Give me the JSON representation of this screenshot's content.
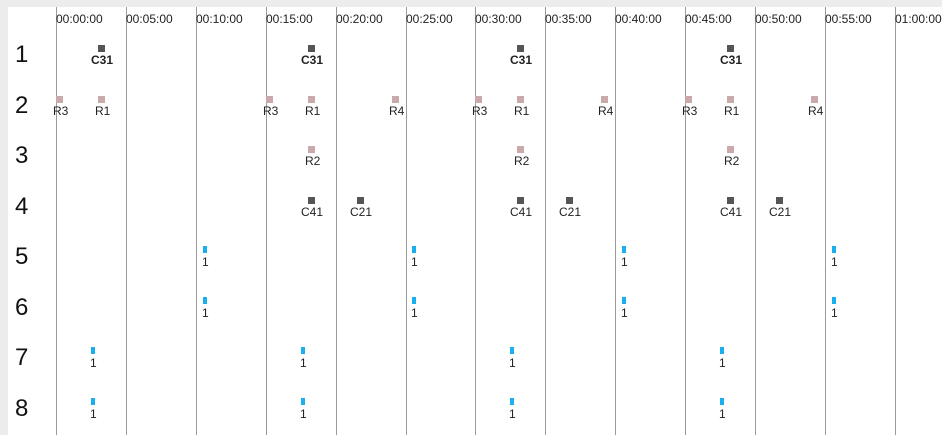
{
  "colors": {
    "background": "#ececec",
    "panel": "#ffffff",
    "gridline": "#9a9a9a",
    "dark": "#555555",
    "rose": "#c9a9a9",
    "blue": "#1ab0ef"
  },
  "timeline": {
    "ticks": [
      "00:00:00",
      "00:05:00",
      "00:10:00",
      "00:15:00",
      "00:20:00",
      "00:25:00",
      "00:30:00",
      "00:35:00",
      "00:40:00",
      "00:45:00",
      "00:50:00",
      "00:55:00",
      "01:00:00"
    ],
    "rows": [
      "1",
      "2",
      "3",
      "4",
      "5",
      "6",
      "7",
      "8"
    ]
  },
  "chart_data": {
    "type": "scatter",
    "title": "",
    "x_unit": "minutes",
    "xlim": [
      0,
      60
    ],
    "series": [
      {
        "color": "#555555",
        "bold": true,
        "points": [
          {
            "row": 1,
            "t": 3,
            "label": "C31"
          },
          {
            "row": 1,
            "t": 18,
            "label": "C31"
          },
          {
            "row": 1,
            "t": 33,
            "label": "C31"
          },
          {
            "row": 1,
            "t": 48,
            "label": "C31"
          }
        ]
      },
      {
        "color": "#c9a9a9",
        "points": [
          {
            "row": 2,
            "t": 0,
            "label": "R3"
          },
          {
            "row": 2,
            "t": 3,
            "label": "R1"
          },
          {
            "row": 2,
            "t": 15,
            "label": "R3"
          },
          {
            "row": 2,
            "t": 18,
            "label": "R1"
          },
          {
            "row": 2,
            "t": 24,
            "label": "R4"
          },
          {
            "row": 2,
            "t": 30,
            "label": "R3"
          },
          {
            "row": 2,
            "t": 33,
            "label": "R1"
          },
          {
            "row": 2,
            "t": 39,
            "label": "R4"
          },
          {
            "row": 2,
            "t": 45,
            "label": "R3"
          },
          {
            "row": 2,
            "t": 48,
            "label": "R1"
          },
          {
            "row": 2,
            "t": 54,
            "label": "R4"
          },
          {
            "row": 3,
            "t": 18,
            "label": "R2"
          },
          {
            "row": 3,
            "t": 33,
            "label": "R2"
          },
          {
            "row": 3,
            "t": 48,
            "label": "R2"
          }
        ]
      },
      {
        "color": "#555555",
        "points": [
          {
            "row": 4,
            "t": 18,
            "label": "C41"
          },
          {
            "row": 4,
            "t": 21.5,
            "label": "C21"
          },
          {
            "row": 4,
            "t": 33,
            "label": "C41"
          },
          {
            "row": 4,
            "t": 36.5,
            "label": "C21"
          },
          {
            "row": 4,
            "t": 48,
            "label": "C41"
          },
          {
            "row": 4,
            "t": 51.5,
            "label": "C21"
          }
        ]
      },
      {
        "color": "#1ab0ef",
        "thin": true,
        "points": [
          {
            "row": 5,
            "t": 10.5,
            "label": "1"
          },
          {
            "row": 5,
            "t": 25.5,
            "label": "1"
          },
          {
            "row": 5,
            "t": 40.5,
            "label": "1"
          },
          {
            "row": 5,
            "t": 55.5,
            "label": "1"
          },
          {
            "row": 6,
            "t": 10.5,
            "label": "1"
          },
          {
            "row": 6,
            "t": 25.5,
            "label": "1"
          },
          {
            "row": 6,
            "t": 40.5,
            "label": "1"
          },
          {
            "row": 6,
            "t": 55.5,
            "label": "1"
          },
          {
            "row": 7,
            "t": 2.5,
            "label": "1"
          },
          {
            "row": 7,
            "t": 17.5,
            "label": "1"
          },
          {
            "row": 7,
            "t": 32.5,
            "label": "1"
          },
          {
            "row": 7,
            "t": 47.5,
            "label": "1"
          },
          {
            "row": 8,
            "t": 2.5,
            "label": "1"
          },
          {
            "row": 8,
            "t": 17.5,
            "label": "1"
          },
          {
            "row": 8,
            "t": 32.5,
            "label": "1"
          },
          {
            "row": 8,
            "t": 47.5,
            "label": "1"
          }
        ]
      }
    ]
  }
}
